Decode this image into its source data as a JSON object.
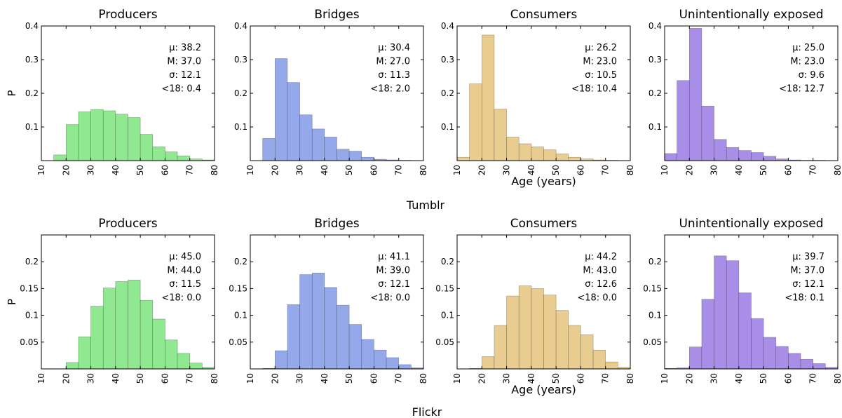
{
  "chart_data": [
    {
      "group": "Tumblr",
      "type": "bar",
      "title": "Producers",
      "color": "#90e890",
      "ylabel": "P",
      "xlabel": "",
      "xlim": [
        10,
        80
      ],
      "ylim": [
        0,
        0.4
      ],
      "x_ticks": [
        "10",
        "20",
        "30",
        "40",
        "50",
        "60",
        "70",
        "80"
      ],
      "y_ticks": [
        "0.1",
        "0.2",
        "0.3",
        "0.4"
      ],
      "bin_edges": [
        15,
        20,
        25,
        30,
        35,
        40,
        45,
        50,
        55,
        60,
        65,
        70,
        75,
        80
      ],
      "values": [
        0.017,
        0.107,
        0.145,
        0.152,
        0.148,
        0.138,
        0.128,
        0.078,
        0.041,
        0.026,
        0.014,
        0.005,
        0.002
      ],
      "stats": [
        "μ: 38.2",
        "M: 37.0",
        "σ: 12.1",
        "<18: 0.4"
      ]
    },
    {
      "group": "Tumblr",
      "type": "bar",
      "title": "Bridges",
      "color": "#94a8ea",
      "ylabel": "",
      "xlabel": "",
      "xlim": [
        10,
        80
      ],
      "ylim": [
        0,
        0.4
      ],
      "x_ticks": [
        "10",
        "20",
        "30",
        "40",
        "50",
        "60",
        "70",
        "80"
      ],
      "y_ticks": [
        "0.1",
        "0.2",
        "0.3",
        "0.4"
      ],
      "bin_edges": [
        15,
        20,
        25,
        30,
        35,
        40,
        45,
        50,
        55,
        60,
        65,
        70,
        75,
        80
      ],
      "values": [
        0.066,
        0.303,
        0.232,
        0.136,
        0.094,
        0.07,
        0.034,
        0.028,
        0.01,
        0.004,
        0.002,
        0.001,
        0.0
      ],
      "stats": [
        "μ: 30.4",
        "M: 27.0",
        "σ: 11.3",
        "<18: 2.0"
      ]
    },
    {
      "group": "Tumblr",
      "type": "bar",
      "title": "Consumers",
      "color": "#e9cc90",
      "ylabel": "",
      "xlabel": "Age (years)",
      "xlim": [
        10,
        80
      ],
      "ylim": [
        0,
        0.4
      ],
      "x_ticks": [
        "10",
        "20",
        "30",
        "40",
        "50",
        "60",
        "70",
        "80"
      ],
      "y_ticks": [
        "0.1",
        "0.2",
        "0.3",
        "0.4"
      ],
      "bin_edges": [
        10,
        15,
        20,
        25,
        30,
        35,
        40,
        45,
        50,
        55,
        60,
        65,
        70,
        75,
        80
      ],
      "values": [
        0.01,
        0.228,
        0.373,
        0.153,
        0.07,
        0.05,
        0.041,
        0.032,
        0.02,
        0.01,
        0.005,
        0.002,
        0.001,
        0.0
      ],
      "stats": [
        "μ: 26.2",
        "M: 23.0",
        "σ: 10.5",
        "<18: 10.4"
      ]
    },
    {
      "group": "Tumblr",
      "type": "bar",
      "title": "Unintentionally exposed",
      "color": "#a98ee8",
      "ylabel": "",
      "xlabel": "",
      "xlim": [
        10,
        80
      ],
      "ylim": [
        0,
        0.4
      ],
      "x_ticks": [
        "10",
        "20",
        "30",
        "40",
        "50",
        "60",
        "70",
        "80"
      ],
      "y_ticks": [
        "0.1",
        "0.2",
        "0.3",
        "0.4"
      ],
      "bin_edges": [
        10,
        15,
        20,
        25,
        30,
        35,
        40,
        45,
        50,
        55,
        60,
        65,
        70,
        75,
        80
      ],
      "values": [
        0.021,
        0.238,
        0.393,
        0.162,
        0.063,
        0.039,
        0.03,
        0.024,
        0.013,
        0.005,
        0.002,
        0.001,
        0.001,
        0.0
      ],
      "stats": [
        "μ: 25.0",
        "M: 23.0",
        "σ: 9.6",
        "<18: 12.7"
      ]
    },
    {
      "group": "Flickr",
      "type": "bar",
      "title": "Producers",
      "color": "#90e890",
      "ylabel": "P",
      "xlabel": "",
      "xlim": [
        10,
        80
      ],
      "ylim": [
        0,
        0.25
      ],
      "x_ticks": [
        "10",
        "20",
        "30",
        "40",
        "50",
        "60",
        "70",
        "80"
      ],
      "y_ticks": [
        "0.05",
        "0.1",
        "0.15",
        "0.2"
      ],
      "bin_edges": [
        20,
        25,
        30,
        35,
        40,
        45,
        50,
        55,
        60,
        65,
        70,
        75,
        80
      ],
      "values": [
        0.012,
        0.06,
        0.117,
        0.151,
        0.163,
        0.166,
        0.128,
        0.093,
        0.054,
        0.029,
        0.011,
        0.003
      ],
      "stats": [
        "μ: 45.0",
        "M: 44.0",
        "σ: 11.5",
        "<18: 0.0"
      ]
    },
    {
      "group": "Flickr",
      "type": "bar",
      "title": "Bridges",
      "color": "#94a8ea",
      "ylabel": "",
      "xlabel": "",
      "xlim": [
        10,
        80
      ],
      "ylim": [
        0,
        0.25
      ],
      "x_ticks": [
        "10",
        "20",
        "30",
        "40",
        "50",
        "60",
        "70",
        "80"
      ],
      "y_ticks": [
        "0.05",
        "0.1",
        "0.15",
        "0.2"
      ],
      "bin_edges": [
        15,
        20,
        25,
        30,
        35,
        40,
        45,
        50,
        55,
        60,
        65,
        70,
        75,
        80
      ],
      "values": [
        0.001,
        0.034,
        0.12,
        0.176,
        0.179,
        0.152,
        0.119,
        0.083,
        0.055,
        0.035,
        0.021,
        0.008,
        0.002
      ],
      "stats": [
        "μ: 41.1",
        "M: 39.0",
        "σ: 12.1",
        "<18: 0.0"
      ]
    },
    {
      "group": "Flickr",
      "type": "bar",
      "title": "Consumers",
      "color": "#e9cc90",
      "ylabel": "",
      "xlabel": "Age (years)",
      "xlim": [
        10,
        80
      ],
      "ylim": [
        0,
        0.25
      ],
      "x_ticks": [
        "10",
        "20",
        "30",
        "40",
        "50",
        "60",
        "70",
        "80"
      ],
      "y_ticks": [
        "0.05",
        "0.1",
        "0.15",
        "0.2"
      ],
      "bin_edges": [
        15,
        20,
        25,
        30,
        35,
        40,
        45,
        50,
        55,
        60,
        65,
        70,
        75,
        80
      ],
      "values": [
        0.001,
        0.023,
        0.081,
        0.136,
        0.155,
        0.15,
        0.138,
        0.109,
        0.081,
        0.064,
        0.035,
        0.013,
        0.003
      ],
      "stats": [
        "μ: 44.2",
        "M: 43.0",
        "σ: 12.6",
        "<18: 0.0"
      ]
    },
    {
      "group": "Flickr",
      "type": "bar",
      "title": "Unintentionally exposed",
      "color": "#a98ee8",
      "ylabel": "",
      "xlabel": "",
      "xlim": [
        10,
        80
      ],
      "ylim": [
        0,
        0.25
      ],
      "x_ticks": [
        "10",
        "20",
        "30",
        "40",
        "50",
        "60",
        "70",
        "80"
      ],
      "y_ticks": [
        "0.05",
        "0.1",
        "0.15",
        "0.2"
      ],
      "bin_edges": [
        10,
        15,
        20,
        25,
        30,
        35,
        40,
        45,
        50,
        55,
        60,
        65,
        70,
        75,
        80
      ],
      "values": [
        0.001,
        0.002,
        0.041,
        0.13,
        0.211,
        0.202,
        0.142,
        0.094,
        0.059,
        0.042,
        0.029,
        0.018,
        0.01,
        0.003
      ],
      "stats": [
        "μ: 39.7",
        "M: 37.0",
        "σ: 12.1",
        "<18: 0.1"
      ]
    }
  ],
  "groups": {
    "tumblr_label": "Tumblr",
    "flickr_label": "Flickr"
  }
}
